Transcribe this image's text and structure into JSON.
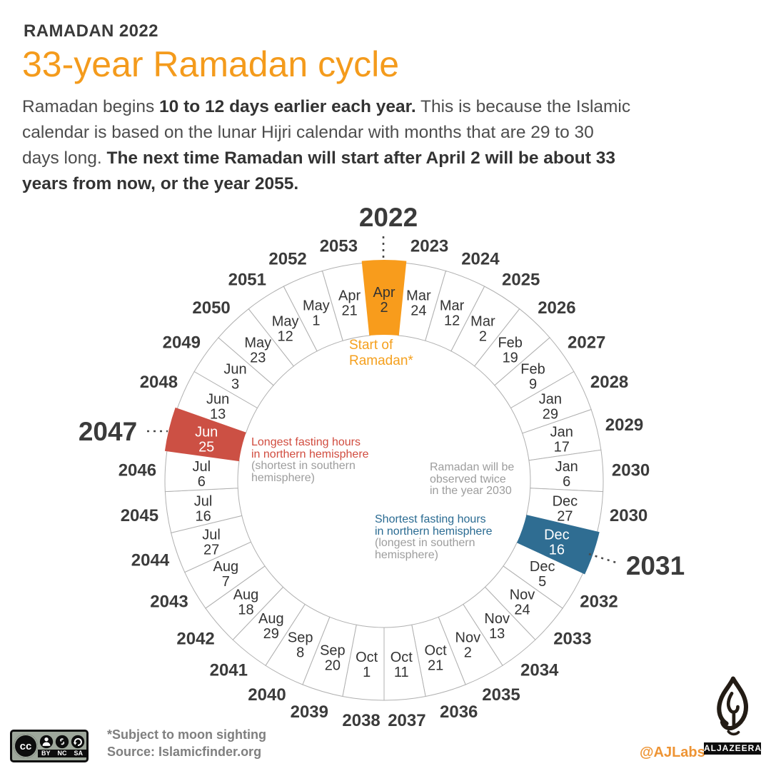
{
  "header": {
    "kicker": "RAMADAN 2022",
    "title": "33-year Ramadan cycle",
    "intro_lines": [
      [
        {
          "text": "Ramadan begins ",
          "bold": false
        },
        {
          "text": "10 to 12 days earlier each year.",
          "bold": true
        },
        {
          "text": " This is because the Islamic",
          "bold": false
        }
      ],
      [
        {
          "text": "calendar is based on the lunar Hijri calendar with months that are 29 to 30",
          "bold": false
        }
      ],
      [
        {
          "text": "days long. ",
          "bold": false
        },
        {
          "text": "The next time Ramadan will start after April 2 will be about 33",
          "bold": true
        }
      ],
      [
        {
          "text": "years from now, or the year 2055.",
          "bold": true
        }
      ]
    ]
  },
  "chart_data": {
    "type": "pie",
    "title": "33-year Ramadan cycle",
    "note": "33 equal radial segments clockwise from top; each label is the start date of Ramadan for that year; 2030 appears twice",
    "segments": [
      {
        "year": "2022",
        "month": "Apr",
        "day": "2",
        "highlight": "orange"
      },
      {
        "year": "2023",
        "month": "Mar",
        "day": "24"
      },
      {
        "year": "2024",
        "month": "Mar",
        "day": "12"
      },
      {
        "year": "2025",
        "month": "Mar",
        "day": "2"
      },
      {
        "year": "2026",
        "month": "Feb",
        "day": "19"
      },
      {
        "year": "2027",
        "month": "Feb",
        "day": "9"
      },
      {
        "year": "2028",
        "month": "Jan",
        "day": "29"
      },
      {
        "year": "2029",
        "month": "Jan",
        "day": "17"
      },
      {
        "year": "2030",
        "month": "Jan",
        "day": "6"
      },
      {
        "year": "2030",
        "month": "Dec",
        "day": "27"
      },
      {
        "year": "2031",
        "month": "Dec",
        "day": "16",
        "highlight": "blue"
      },
      {
        "year": "2032",
        "month": "Dec",
        "day": "5"
      },
      {
        "year": "2033",
        "month": "Nov",
        "day": "24"
      },
      {
        "year": "2034",
        "month": "Nov",
        "day": "13"
      },
      {
        "year": "2035",
        "month": "Nov",
        "day": "2"
      },
      {
        "year": "2036",
        "month": "Oct",
        "day": "21"
      },
      {
        "year": "2037",
        "month": "Oct",
        "day": "11"
      },
      {
        "year": "2038",
        "month": "Oct",
        "day": "1"
      },
      {
        "year": "2039",
        "month": "Sep",
        "day": "20"
      },
      {
        "year": "2040",
        "month": "Sep",
        "day": "8"
      },
      {
        "year": "2041",
        "month": "Aug",
        "day": "29"
      },
      {
        "year": "2042",
        "month": "Aug",
        "day": "18"
      },
      {
        "year": "2043",
        "month": "Aug",
        "day": "7"
      },
      {
        "year": "2044",
        "month": "Jul",
        "day": "27"
      },
      {
        "year": "2045",
        "month": "Jul",
        "day": "16"
      },
      {
        "year": "2046",
        "month": "Jul",
        "day": "6"
      },
      {
        "year": "2047",
        "month": "Jun",
        "day": "25",
        "highlight": "red"
      },
      {
        "year": "2048",
        "month": "Jun",
        "day": "13"
      },
      {
        "year": "2049",
        "month": "Jun",
        "day": "3"
      },
      {
        "year": "2050",
        "month": "May",
        "day": "23"
      },
      {
        "year": "2051",
        "month": "May",
        "day": "12"
      },
      {
        "year": "2052",
        "month": "May",
        "day": "1"
      },
      {
        "year": "2053",
        "month": "Apr",
        "day": "21"
      }
    ]
  },
  "annotations": {
    "start_of_ramadan": {
      "lines": [
        "Start of",
        "Ramadan*"
      ]
    },
    "longest_fasting": {
      "primary_lines": [
        "Longest fasting hours",
        "in northern hemisphere"
      ],
      "secondary_lines": [
        "(shortest in southern",
        "hemisphere)"
      ]
    },
    "observed_twice": {
      "lines": [
        "Ramadan will be",
        "observed twice",
        "in the year 2030"
      ]
    },
    "shortest_fasting": {
      "primary_lines": [
        "Shortest fasting hours",
        "in northern hemisphere"
      ],
      "secondary_lines": [
        "(longest in southern",
        "hemisphere)"
      ]
    }
  },
  "colors": {
    "orange": "#f89c1c",
    "red": "#cc5044",
    "blue": "#2f6d92",
    "title_orange": "#f49b1c",
    "year_text": "#3b3b3b",
    "date_text": "#333333",
    "ring_line": "#b0b0b0",
    "dash_line": "#4a4a4a"
  },
  "footer": {
    "note": "*Subject to moon sighting",
    "source": "Source: Islamicfinder.org",
    "credit": "@AJLabs",
    "brand": "ALJAZEERA",
    "license": {
      "cc": "cc",
      "terms": [
        "BY",
        "NC",
        "SA"
      ]
    }
  }
}
